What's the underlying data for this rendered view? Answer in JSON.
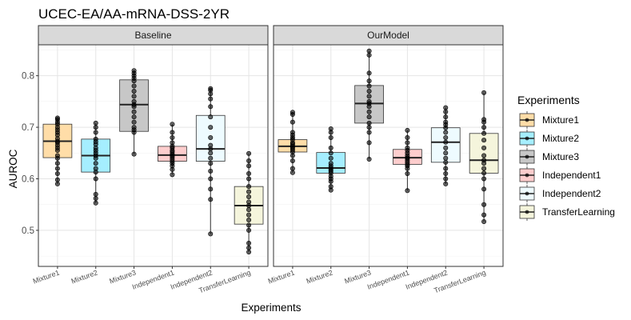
{
  "chart_data": {
    "type": "box",
    "title": "UCEC-EA/AA-mRNA-DSS-2YR",
    "xlabel": "Experiments",
    "ylabel": "AUROC",
    "ylim": [
      0.43,
      0.86
    ],
    "yticks": [
      0.5,
      0.6,
      0.7,
      0.8
    ],
    "grid": true,
    "legend_position": "right",
    "legend_title": "Experiments",
    "categories": [
      "Mixture1",
      "Mixture2",
      "Mixture3",
      "Independent1",
      "Independent2",
      "TransferLearning"
    ],
    "colors": {
      "Mixture1": "#FFDDA8",
      "Mixture2": "#A5EEFF",
      "Mixture3": "#C7C7C7",
      "Independent1": "#FDCDCD",
      "Independent2": "#EEFBFF",
      "TransferLearning": "#F5F5DC"
    },
    "panels": [
      {
        "name": "Baseline",
        "boxes": [
          {
            "category": "Mixture1",
            "min": 0.59,
            "q1": 0.641,
            "median": 0.673,
            "q3": 0.706,
            "max": 0.718,
            "points": [
              0.59,
              0.598,
              0.61,
              0.62,
              0.63,
              0.64,
              0.645,
              0.655,
              0.66,
              0.665,
              0.67,
              0.673,
              0.678,
              0.685,
              0.69,
              0.695,
              0.7,
              0.706,
              0.71,
              0.715,
              0.718
            ]
          },
          {
            "category": "Mixture2",
            "min": 0.553,
            "q1": 0.613,
            "median": 0.645,
            "q3": 0.677,
            "max": 0.708,
            "points": [
              0.553,
              0.562,
              0.57,
              0.6,
              0.613,
              0.62,
              0.63,
              0.64,
              0.645,
              0.65,
              0.655,
              0.66,
              0.667,
              0.672,
              0.677,
              0.69,
              0.7,
              0.708
            ]
          },
          {
            "category": "Mixture3",
            "min": 0.648,
            "q1": 0.692,
            "median": 0.744,
            "q3": 0.792,
            "max": 0.81,
            "points": [
              0.648,
              0.69,
              0.695,
              0.7,
              0.71,
              0.72,
              0.73,
              0.74,
              0.744,
              0.75,
              0.76,
              0.77,
              0.78,
              0.79,
              0.795,
              0.8,
              0.805,
              0.81
            ]
          },
          {
            "category": "Independent1",
            "min": 0.608,
            "q1": 0.634,
            "median": 0.646,
            "q3": 0.663,
            "max": 0.706,
            "points": [
              0.608,
              0.618,
              0.625,
              0.63,
              0.634,
              0.638,
              0.642,
              0.645,
              0.648,
              0.652,
              0.655,
              0.66,
              0.663,
              0.67,
              0.68,
              0.69,
              0.706
            ]
          },
          {
            "category": "Independent2",
            "min": 0.493,
            "q1": 0.634,
            "median": 0.658,
            "q3": 0.723,
            "max": 0.775,
            "points": [
              0.493,
              0.56,
              0.58,
              0.6,
              0.615,
              0.63,
              0.64,
              0.65,
              0.658,
              0.665,
              0.68,
              0.7,
              0.72,
              0.74,
              0.755,
              0.765,
              0.772,
              0.775
            ]
          },
          {
            "category": "TransferLearning",
            "min": 0.458,
            "q1": 0.512,
            "median": 0.548,
            "q3": 0.585,
            "max": 0.649,
            "points": [
              0.458,
              0.466,
              0.475,
              0.5,
              0.51,
              0.52,
              0.53,
              0.54,
              0.548,
              0.555,
              0.565,
              0.575,
              0.585,
              0.6,
              0.61,
              0.625,
              0.635,
              0.649
            ]
          }
        ]
      },
      {
        "name": "OurModel",
        "boxes": [
          {
            "category": "Mixture1",
            "min": 0.612,
            "q1": 0.652,
            "median": 0.663,
            "q3": 0.676,
            "max": 0.729,
            "points": [
              0.612,
              0.62,
              0.635,
              0.645,
              0.652,
              0.656,
              0.66,
              0.663,
              0.667,
              0.67,
              0.676,
              0.68,
              0.685,
              0.69,
              0.71,
              0.725,
              0.729
            ]
          },
          {
            "category": "Mixture2",
            "min": 0.578,
            "q1": 0.611,
            "median": 0.621,
            "q3": 0.651,
            "max": 0.697,
            "points": [
              0.578,
              0.585,
              0.595,
              0.6,
              0.605,
              0.611,
              0.615,
              0.618,
              0.621,
              0.625,
              0.63,
              0.64,
              0.65,
              0.66,
              0.68,
              0.69,
              0.697
            ]
          },
          {
            "category": "Mixture3",
            "min": 0.638,
            "q1": 0.708,
            "median": 0.746,
            "q3": 0.781,
            "max": 0.848,
            "points": [
              0.638,
              0.67,
              0.69,
              0.7,
              0.708,
              0.72,
              0.73,
              0.74,
              0.746,
              0.75,
              0.76,
              0.77,
              0.78,
              0.79,
              0.805,
              0.84,
              0.848
            ]
          },
          {
            "category": "Independent1",
            "min": 0.577,
            "q1": 0.628,
            "median": 0.641,
            "q3": 0.657,
            "max": 0.694,
            "points": [
              0.577,
              0.61,
              0.62,
              0.625,
              0.628,
              0.632,
              0.636,
              0.64,
              0.641,
              0.645,
              0.65,
              0.655,
              0.66,
              0.67,
              0.68,
              0.694
            ]
          },
          {
            "category": "Independent2",
            "min": 0.59,
            "q1": 0.632,
            "median": 0.671,
            "q3": 0.699,
            "max": 0.738,
            "points": [
              0.59,
              0.6,
              0.61,
              0.62,
              0.632,
              0.64,
              0.65,
              0.66,
              0.671,
              0.68,
              0.69,
              0.699,
              0.705,
              0.71,
              0.72,
              0.73,
              0.738
            ]
          },
          {
            "category": "TransferLearning",
            "min": 0.517,
            "q1": 0.611,
            "median": 0.636,
            "q3": 0.688,
            "max": 0.767,
            "points": [
              0.517,
              0.53,
              0.55,
              0.58,
              0.6,
              0.611,
              0.62,
              0.63,
              0.636,
              0.645,
              0.66,
              0.675,
              0.688,
              0.7,
              0.71,
              0.715,
              0.767
            ]
          }
        ]
      }
    ]
  }
}
